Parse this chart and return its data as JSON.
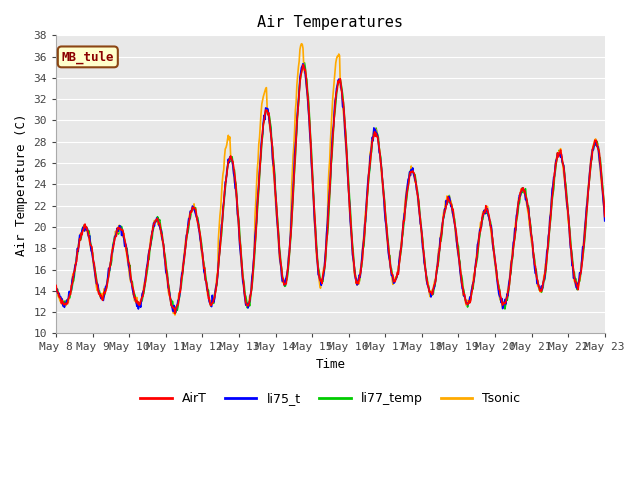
{
  "title": "Air Temperatures",
  "xlabel": "Time",
  "ylabel": "Air Temperature (C)",
  "ylim": [
    10,
    38
  ],
  "xlim": [
    0,
    15
  ],
  "fig_bg_color": "#ffffff",
  "plot_bg_color": "#e8e8e8",
  "annotation_text": "MB_tule",
  "annotation_bg": "#ffffcc",
  "annotation_border": "#8b4513",
  "annotation_text_color": "#8b0000",
  "series_colors": {
    "AirT": "#ff0000",
    "li75_t": "#0000ff",
    "li77_temp": "#00cc00",
    "Tsonic": "#ffaa00"
  },
  "x_tick_labels": [
    "May 8",
    "May 9",
    "May 10",
    "May 11",
    "May 12",
    "May 13",
    "May 14",
    "May 15",
    "May 16",
    "May 17",
    "May 18",
    "May 19",
    "May 20",
    "May 21",
    "May 22",
    "May 23"
  ],
  "x_tick_positions": [
    0,
    1,
    2,
    3,
    4,
    5,
    6,
    7,
    8,
    9,
    10,
    11,
    12,
    13,
    14,
    15
  ],
  "grid_color": "#ffffff",
  "line_width": 1.2
}
